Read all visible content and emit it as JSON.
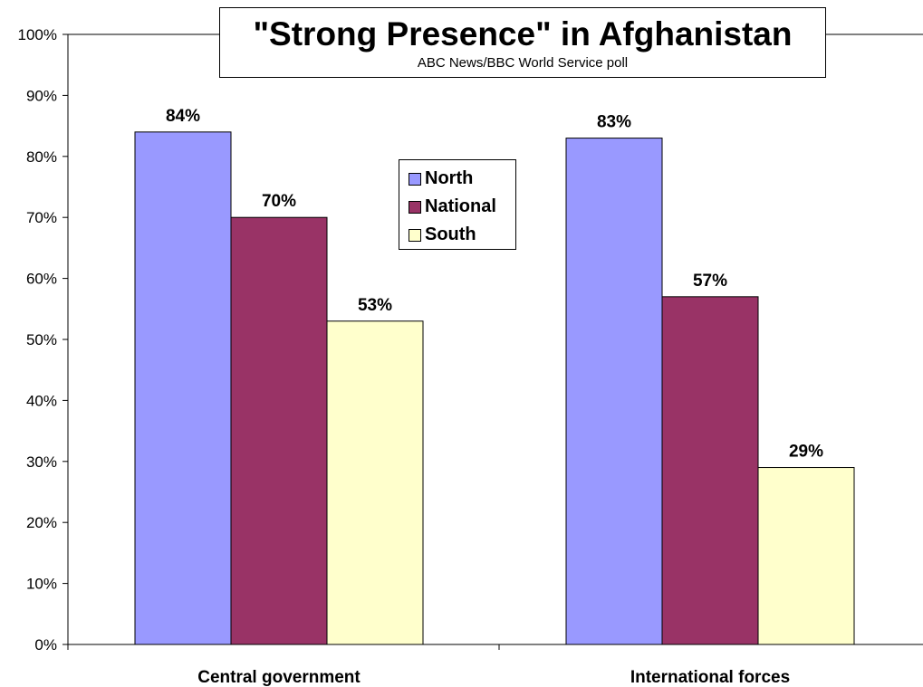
{
  "chart_data": {
    "type": "bar",
    "title": "\"Strong Presence\" in Afghanistan",
    "subtitle": "ABC News/BBC World Service poll",
    "categories": [
      "Central government",
      "International forces"
    ],
    "series": [
      {
        "name": "North",
        "values": [
          84,
          83
        ],
        "color": "#9999ff"
      },
      {
        "name": "National",
        "values": [
          70,
          57
        ],
        "color": "#993366"
      },
      {
        "name": "South",
        "values": [
          53,
          29
        ],
        "color": "#ffffcc"
      }
    ],
    "ylim": [
      0,
      100
    ],
    "yticks": [
      "0%",
      "10%",
      "20%",
      "30%",
      "40%",
      "50%",
      "60%",
      "70%",
      "80%",
      "90%",
      "100%"
    ],
    "data_labels": [
      [
        "84%",
        "83%"
      ],
      [
        "70%",
        "57%"
      ],
      [
        "53%",
        "29%"
      ]
    ],
    "legend": "inside-center",
    "grid": false
  }
}
